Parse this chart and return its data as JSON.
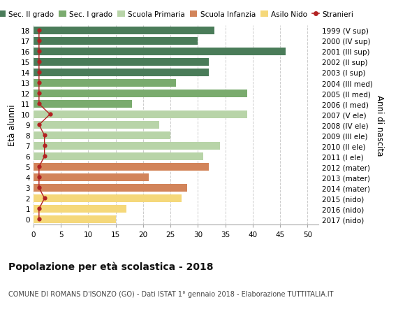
{
  "ages": [
    18,
    17,
    16,
    15,
    14,
    13,
    12,
    11,
    10,
    9,
    8,
    7,
    6,
    5,
    4,
    3,
    2,
    1,
    0
  ],
  "right_labels": [
    "1999 (V sup)",
    "2000 (IV sup)",
    "2001 (III sup)",
    "2002 (II sup)",
    "2003 (I sup)",
    "2004 (III med)",
    "2005 (II med)",
    "2006 (I med)",
    "2007 (V ele)",
    "2008 (IV ele)",
    "2009 (III ele)",
    "2010 (II ele)",
    "2011 (I ele)",
    "2012 (mater)",
    "2013 (mater)",
    "2014 (mater)",
    "2015 (nido)",
    "2016 (nido)",
    "2017 (nido)"
  ],
  "bar_values": [
    33,
    30,
    46,
    32,
    32,
    26,
    39,
    18,
    39,
    23,
    25,
    34,
    31,
    32,
    21,
    28,
    27,
    17,
    15
  ],
  "bar_colors": [
    "#4a7c59",
    "#4a7c59",
    "#4a7c59",
    "#4a7c59",
    "#4a7c59",
    "#7aab6e",
    "#7aab6e",
    "#7aab6e",
    "#b8d4a8",
    "#b8d4a8",
    "#b8d4a8",
    "#b8d4a8",
    "#b8d4a8",
    "#d2845a",
    "#d2845a",
    "#d2845a",
    "#f5d87a",
    "#f5d87a",
    "#f5d87a"
  ],
  "stranieri_values": [
    1,
    1,
    1,
    1,
    1,
    1,
    1,
    1,
    3,
    1,
    2,
    2,
    2,
    1,
    1,
    1,
    2,
    1,
    1
  ],
  "stranieri_color": "#b22222",
  "legend_labels": [
    "Sec. II grado",
    "Sec. I grado",
    "Scuola Primaria",
    "Scuola Infanzia",
    "Asilo Nido",
    "Stranieri"
  ],
  "legend_colors": [
    "#4a7c59",
    "#7aab6e",
    "#b8d4a8",
    "#d2845a",
    "#f5d87a",
    "#b22222"
  ],
  "ylabel_left": "Età alunni",
  "ylabel_right": "Anni di nascita",
  "xticks": [
    0,
    5,
    10,
    15,
    20,
    25,
    30,
    35,
    40,
    45,
    50
  ],
  "xlim": [
    0,
    52
  ],
  "title": "Popolazione per età scolastica - 2018",
  "subtitle": "COMUNE DI ROMANS D'ISONZO (GO) - Dati ISTAT 1° gennaio 2018 - Elaborazione TUTTITALIA.IT",
  "background_color": "#ffffff",
  "grid_color": "#cccccc"
}
